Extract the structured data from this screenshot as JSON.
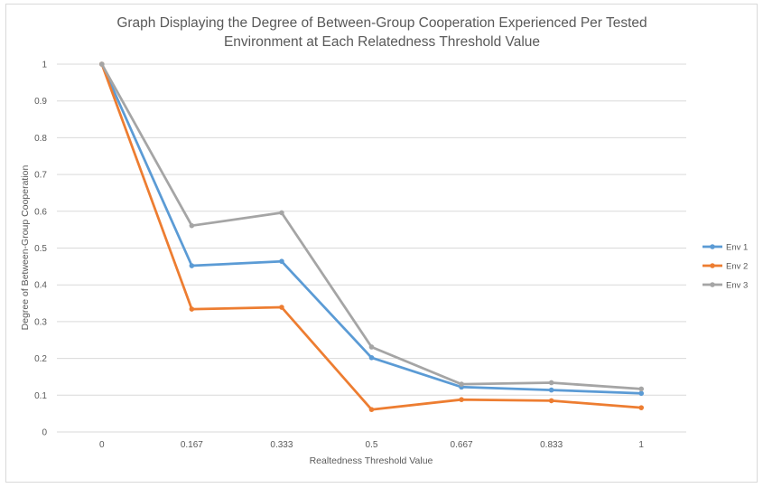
{
  "chart_data": {
    "type": "line",
    "title_lines": [
      "Graph Displaying the Degree of Between-Group Cooperation Experienced Per Tested",
      "Environment at Each Relatedness Threshold Value"
    ],
    "xlabel": "Realtedness Threshold Value",
    "ylabel": "Degree of Between-Group Cooperation",
    "categories": [
      "0",
      "0.167",
      "0.333",
      "0.5",
      "0.667",
      "0.833",
      "1"
    ],
    "ylim": [
      0,
      1
    ],
    "yticks": [
      "0",
      "0.1",
      "0.2",
      "0.3",
      "0.4",
      "0.5",
      "0.6",
      "0.7",
      "0.8",
      "0.9",
      "1"
    ],
    "grid": true,
    "legend_position": "right",
    "series": [
      {
        "name": "Env 1",
        "color": "#5b9bd5",
        "values": [
          1.0,
          0.452,
          0.464,
          0.202,
          0.122,
          0.114,
          0.105
        ]
      },
      {
        "name": "Env 2",
        "color": "#ed7d31",
        "values": [
          1.0,
          0.334,
          0.339,
          0.061,
          0.088,
          0.085,
          0.066
        ]
      },
      {
        "name": "Env 3",
        "color": "#a5a5a5",
        "values": [
          1.0,
          0.561,
          0.596,
          0.231,
          0.13,
          0.134,
          0.117
        ]
      }
    ]
  }
}
